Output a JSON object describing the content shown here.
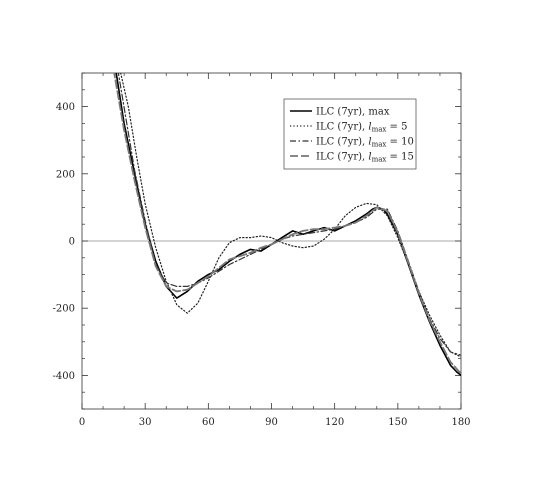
{
  "chart_data": {
    "type": "line",
    "title": "",
    "xlabel": "",
    "ylabel": "",
    "xlim": [
      0,
      180
    ],
    "ylim": [
      -500,
      500
    ],
    "xticks": [
      0,
      30,
      60,
      90,
      120,
      150,
      180
    ],
    "yticks": [
      400,
      200,
      0,
      -200,
      -400
    ],
    "xtick_labels": [
      "0",
      "30",
      "60",
      "90",
      "120",
      "150",
      "180"
    ],
    "ytick_labels": [
      "400",
      "200",
      "0",
      "-200",
      "-400"
    ],
    "zero_line": true,
    "grid": false,
    "legend_position": "top-right",
    "series": [
      {
        "name": "ILC (7yr), max",
        "style": "solid",
        "color": "#000000",
        "x": [
          16,
          20,
          25,
          30,
          35,
          40,
          45,
          50,
          55,
          60,
          65,
          70,
          75,
          80,
          85,
          90,
          95,
          100,
          105,
          110,
          115,
          120,
          125,
          130,
          135,
          138,
          140,
          143,
          145,
          150,
          155,
          160,
          165,
          170,
          175,
          178,
          180
        ],
        "y": [
          510,
          350,
          200,
          50,
          -60,
          -135,
          -170,
          -150,
          -120,
          -100,
          -85,
          -60,
          -40,
          -25,
          -30,
          -10,
          10,
          30,
          20,
          30,
          40,
          30,
          45,
          60,
          80,
          95,
          100,
          95,
          80,
          20,
          -70,
          -160,
          -240,
          -310,
          -370,
          -390,
          -400
        ]
      },
      {
        "name": "ILC (7yr), l_max = 5",
        "style": "dotted",
        "color": "#222222",
        "x": [
          18,
          22,
          26,
          30,
          35,
          40,
          45,
          50,
          55,
          60,
          65,
          70,
          75,
          80,
          85,
          90,
          95,
          100,
          105,
          110,
          115,
          120,
          125,
          130,
          135,
          140,
          145,
          150,
          155,
          160,
          165,
          170,
          175,
          180
        ],
        "y": [
          510,
          400,
          250,
          110,
          -20,
          -120,
          -190,
          -215,
          -185,
          -120,
          -50,
          -5,
          10,
          10,
          15,
          10,
          -5,
          -15,
          -20,
          -15,
          5,
          35,
          75,
          100,
          112,
          108,
          75,
          10,
          -70,
          -150,
          -220,
          -280,
          -330,
          -345
        ]
      },
      {
        "name": "ILC (7yr), l_max = 10",
        "style": "dashdot",
        "color": "#333333",
        "x": [
          17,
          21,
          25,
          30,
          35,
          40,
          45,
          50,
          55,
          60,
          65,
          70,
          75,
          80,
          85,
          90,
          95,
          100,
          105,
          110,
          115,
          120,
          125,
          130,
          135,
          140,
          145,
          150,
          155,
          160,
          165,
          170,
          175,
          180
        ],
        "y": [
          510,
          360,
          210,
          60,
          -70,
          -125,
          -135,
          -135,
          -125,
          -110,
          -90,
          -70,
          -55,
          -40,
          -25,
          -10,
          5,
          15,
          20,
          25,
          30,
          35,
          45,
          55,
          70,
          95,
          95,
          30,
          -60,
          -150,
          -230,
          -290,
          -330,
          -340
        ]
      },
      {
        "name": "ILC (7yr), l_max = 15",
        "style": "dashed",
        "color": "#777777",
        "x": [
          15,
          20,
          25,
          30,
          35,
          40,
          45,
          50,
          55,
          60,
          65,
          70,
          75,
          80,
          85,
          90,
          95,
          100,
          105,
          110,
          115,
          120,
          125,
          130,
          135,
          140,
          145,
          150,
          155,
          160,
          165,
          170,
          175,
          180
        ],
        "y": [
          510,
          330,
          180,
          40,
          -75,
          -135,
          -150,
          -145,
          -125,
          -105,
          -80,
          -55,
          -45,
          -35,
          -20,
          -10,
          5,
          20,
          30,
          35,
          35,
          40,
          45,
          55,
          75,
          100,
          90,
          25,
          -65,
          -155,
          -235,
          -300,
          -360,
          -395
        ]
      }
    ]
  }
}
